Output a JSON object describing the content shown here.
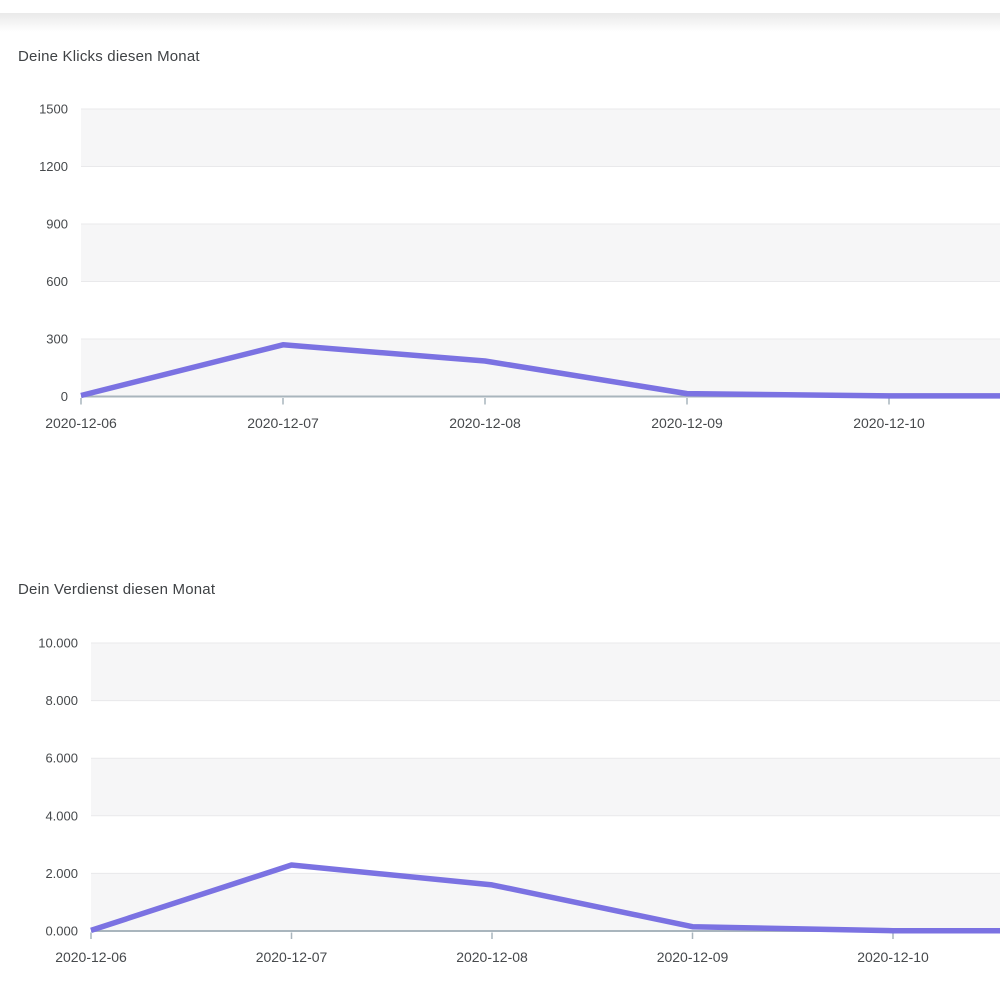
{
  "page": {
    "background_color": "#ffffff"
  },
  "chart_data": [
    {
      "type": "line",
      "title": "Deine Klicks diesen Monat",
      "x": [
        "2020-12-06",
        "2020-12-07",
        "2020-12-08",
        "2020-12-09",
        "2020-12-10"
      ],
      "series": [
        {
          "name": "Klicks",
          "values": [
            5,
            270,
            185,
            15,
            3
          ]
        }
      ],
      "xlabel": "",
      "ylabel": "",
      "ylim": [
        0,
        1500
      ],
      "ytick_labels": [
        "0",
        "300",
        "600",
        "900",
        "1200",
        "1500"
      ],
      "legend": "none",
      "grid": "horizontal-striped-bands",
      "line_color": "#7b72e2",
      "band_color": "#f6f6f7",
      "gridline_color": "#e9e9eb",
      "axis_color": "#a9b5bd",
      "line_continues_past_right_edge": true
    },
    {
      "type": "line",
      "title": "Dein Verdienst diesen Monat",
      "x": [
        "2020-12-06",
        "2020-12-07",
        "2020-12-08",
        "2020-12-09",
        "2020-12-10"
      ],
      "series": [
        {
          "name": "Verdienst",
          "values": [
            20,
            2290,
            1600,
            150,
            10
          ]
        }
      ],
      "xlabel": "",
      "ylabel": "",
      "ylim": [
        0,
        10000
      ],
      "ytick_labels": [
        "0.000",
        "2.000",
        "4.000",
        "6.000",
        "8.000",
        "10.000"
      ],
      "legend": "none",
      "grid": "horizontal-striped-bands",
      "line_color": "#7b72e2",
      "band_color": "#f6f6f7",
      "gridline_color": "#e9e9eb",
      "axis_color": "#a9b5bd",
      "line_continues_past_right_edge": true
    }
  ]
}
